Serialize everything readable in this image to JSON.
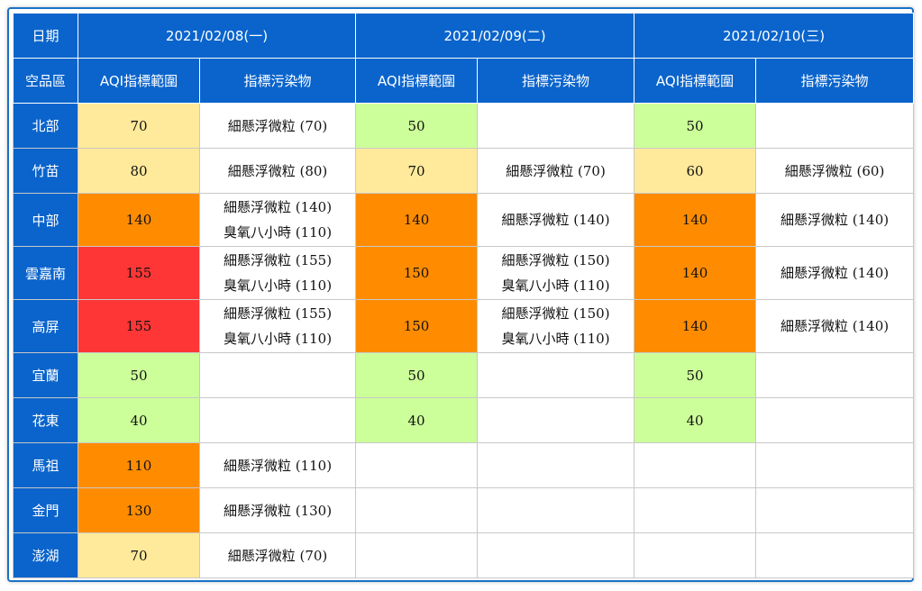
{
  "header": {
    "date_label": "日期",
    "region_label": "空品區",
    "days": [
      {
        "date": "2021/02/08(一)",
        "aqi_label": "AQI指標範圍",
        "pollutant_label": "指標污染物"
      },
      {
        "date": "2021/02/09(二)",
        "aqi_label": "AQI指標範圍",
        "pollutant_label": "指標污染物"
      },
      {
        "date": "2021/02/10(三)",
        "aqi_label": "AQI指標範圍",
        "pollutant_label": "指標污染物"
      }
    ]
  },
  "colors": {
    "header_blue": "#0a64cc",
    "good": "#ccff99",
    "moderate": "#ffe99a",
    "sensitive": "#ff8c00",
    "unhealthy": "#ff3636",
    "empty": "#ffffff"
  },
  "rows": [
    {
      "region": "北部",
      "days": [
        {
          "aqi": "70",
          "level": "moderate",
          "pollutants": [
            "細懸浮微粒 (70)",
            ""
          ]
        },
        {
          "aqi": "50",
          "level": "good",
          "pollutants": [
            "",
            ""
          ]
        },
        {
          "aqi": "50",
          "level": "good",
          "pollutants": [
            "",
            ""
          ]
        }
      ]
    },
    {
      "region": "竹苗",
      "days": [
        {
          "aqi": "80",
          "level": "moderate",
          "pollutants": [
            "細懸浮微粒 (80)",
            ""
          ]
        },
        {
          "aqi": "70",
          "level": "moderate",
          "pollutants": [
            "細懸浮微粒 (70)",
            ""
          ]
        },
        {
          "aqi": "60",
          "level": "moderate",
          "pollutants": [
            "細懸浮微粒 (60)",
            ""
          ]
        }
      ]
    },
    {
      "region": "中部",
      "days": [
        {
          "aqi": "140",
          "level": "sensitive",
          "pollutants": [
            "細懸浮微粒 (140)",
            "臭氧八小時 (110)"
          ]
        },
        {
          "aqi": "140",
          "level": "sensitive",
          "pollutants": [
            "細懸浮微粒 (140)",
            ""
          ]
        },
        {
          "aqi": "140",
          "level": "sensitive",
          "pollutants": [
            "細懸浮微粒 (140)",
            ""
          ]
        }
      ]
    },
    {
      "region": "雲嘉南",
      "days": [
        {
          "aqi": "155",
          "level": "unhealthy",
          "pollutants": [
            "細懸浮微粒 (155)",
            "臭氧八小時 (110)"
          ]
        },
        {
          "aqi": "150",
          "level": "sensitive",
          "pollutants": [
            "細懸浮微粒 (150)",
            "臭氧八小時 (110)"
          ]
        },
        {
          "aqi": "140",
          "level": "sensitive",
          "pollutants": [
            "細懸浮微粒 (140)",
            ""
          ]
        }
      ]
    },
    {
      "region": "高屏",
      "days": [
        {
          "aqi": "155",
          "level": "unhealthy",
          "pollutants": [
            "細懸浮微粒 (155)",
            "臭氧八小時 (110)"
          ]
        },
        {
          "aqi": "150",
          "level": "sensitive",
          "pollutants": [
            "細懸浮微粒 (150)",
            "臭氧八小時 (110)"
          ]
        },
        {
          "aqi": "140",
          "level": "sensitive",
          "pollutants": [
            "細懸浮微粒 (140)",
            ""
          ]
        }
      ]
    },
    {
      "region": "宜蘭",
      "days": [
        {
          "aqi": "50",
          "level": "good",
          "pollutants": [
            "",
            ""
          ]
        },
        {
          "aqi": "50",
          "level": "good",
          "pollutants": [
            "",
            ""
          ]
        },
        {
          "aqi": "50",
          "level": "good",
          "pollutants": [
            "",
            ""
          ]
        }
      ]
    },
    {
      "region": "花東",
      "days": [
        {
          "aqi": "40",
          "level": "good",
          "pollutants": [
            "",
            ""
          ]
        },
        {
          "aqi": "40",
          "level": "good",
          "pollutants": [
            "",
            ""
          ]
        },
        {
          "aqi": "40",
          "level": "good",
          "pollutants": [
            "",
            ""
          ]
        }
      ]
    },
    {
      "region": "馬祖",
      "days": [
        {
          "aqi": "110",
          "level": "sensitive",
          "pollutants": [
            "細懸浮微粒 (110)",
            ""
          ]
        },
        {
          "aqi": "",
          "level": "empty",
          "pollutants": [
            "",
            ""
          ]
        },
        {
          "aqi": "",
          "level": "empty",
          "pollutants": [
            "",
            ""
          ]
        }
      ]
    },
    {
      "region": "金門",
      "days": [
        {
          "aqi": "130",
          "level": "sensitive",
          "pollutants": [
            "細懸浮微粒 (130)",
            ""
          ]
        },
        {
          "aqi": "",
          "level": "empty",
          "pollutants": [
            "",
            ""
          ]
        },
        {
          "aqi": "",
          "level": "empty",
          "pollutants": [
            "",
            ""
          ]
        }
      ]
    },
    {
      "region": "澎湖",
      "days": [
        {
          "aqi": "70",
          "level": "moderate",
          "pollutants": [
            "細懸浮微粒 (70)",
            ""
          ]
        },
        {
          "aqi": "",
          "level": "empty",
          "pollutants": [
            "",
            ""
          ]
        },
        {
          "aqi": "",
          "level": "empty",
          "pollutants": [
            "",
            ""
          ]
        }
      ]
    }
  ]
}
